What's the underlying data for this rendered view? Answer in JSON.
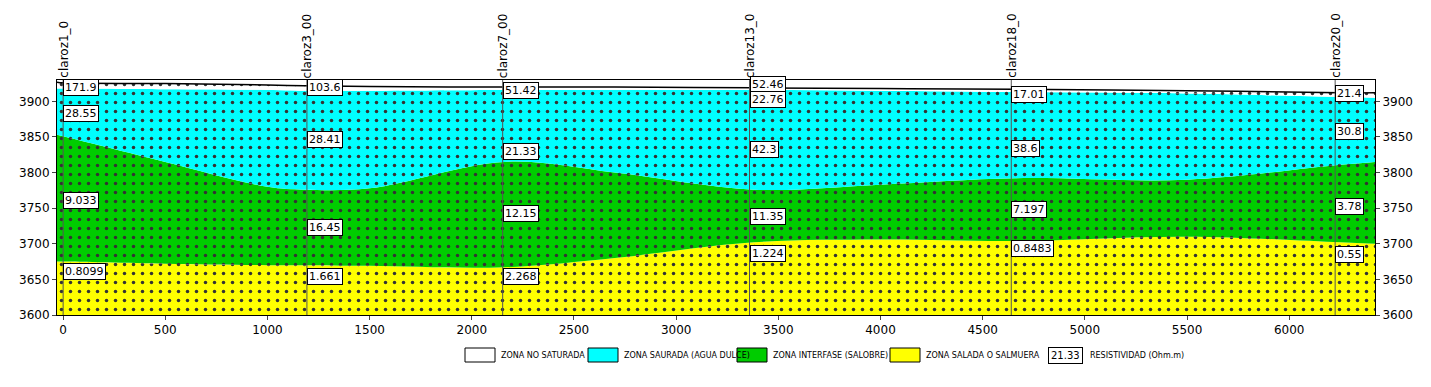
{
  "chart_data": {
    "type": "area",
    "x": [
      -30,
      0,
      500,
      1000,
      1180,
      1500,
      2160,
      2700,
      3380,
      4000,
      4660,
      5500,
      6250,
      6420
    ],
    "series": [
      {
        "name": "ZONA NO SATURADA",
        "color": "#ffffff",
        "values": [
          3927,
          3926,
          3925,
          3923,
          3922,
          3921,
          3920,
          3920,
          3919,
          3918,
          3917,
          3915,
          3912,
          3912
        ]
      },
      {
        "name": "ZONA SAURADA (AGUA DULCE)",
        "color": "#00ffff",
        "values": [
          3918,
          3918,
          3917,
          3916,
          3915,
          3915,
          3916,
          3916,
          3916,
          3915,
          3913,
          3911,
          3906,
          3905
        ]
      },
      {
        "name": "ZONA INTERFASE (SALOBRE)",
        "color": "#00cc00",
        "values": [
          3853,
          3851,
          3815,
          3780,
          3776,
          3778,
          3815,
          3800,
          3776,
          3783,
          3792,
          3790,
          3811,
          3815
        ]
      },
      {
        "name": "ZONA SALADA O SALMUERA",
        "color": "#ffff00",
        "values": [
          3675,
          3675,
          3672,
          3670,
          3670,
          3669,
          3667,
          3680,
          3702,
          3706,
          3704,
          3710,
          3702,
          3700
        ]
      }
    ],
    "stations": [
      {
        "name": "claroz1_0",
        "x": 0,
        "resistivity": [
          {
            "value": 171.9,
            "elevation": 3920
          },
          {
            "value": 28.55,
            "elevation": 3883
          },
          {
            "value": 9.033,
            "elevation": 3761
          },
          {
            "value": 0.8099,
            "elevation": 3661
          }
        ]
      },
      {
        "name": "claroz3_00",
        "x": 1193,
        "resistivity": [
          {
            "value": 103.6,
            "elevation": 3920
          },
          {
            "value": 28.41,
            "elevation": 3846
          },
          {
            "value": 16.45,
            "elevation": 3723
          },
          {
            "value": 1.661,
            "elevation": 3654
          }
        ]
      },
      {
        "name": "claroz7_00",
        "x": 2151,
        "resistivity": [
          {
            "value": 51.42,
            "elevation": 3915
          },
          {
            "value": 21.33,
            "elevation": 3830
          },
          {
            "value": 12.15,
            "elevation": 3742
          },
          {
            "value": 2.268,
            "elevation": 3654
          }
        ]
      },
      {
        "name": "claroz13_0",
        "x": 3359,
        "resistivity": [
          {
            "value": 52.46,
            "elevation": 3924
          },
          {
            "value": 22.76,
            "elevation": 3903
          },
          {
            "value": 42.3,
            "elevation": 3832
          },
          {
            "value": 11.35,
            "elevation": 3739
          },
          {
            "value": 1.224,
            "elevation": 3686
          }
        ]
      },
      {
        "name": "claroz18_0",
        "x": 4640,
        "resistivity": [
          {
            "value": 17.01,
            "elevation": 3910
          },
          {
            "value": 38.6,
            "elevation": 3834
          },
          {
            "value": 7.197,
            "elevation": 3748
          },
          {
            "value": 0.8483,
            "elevation": 3693
          }
        ]
      },
      {
        "name": "claroz20_0",
        "x": 6225,
        "resistivity": [
          {
            "value": 21.4,
            "elevation": 3911
          },
          {
            "value": 30.8,
            "elevation": 3858
          },
          {
            "value": 3.78,
            "elevation": 3753
          },
          {
            "value": 0.55,
            "elevation": 3685
          }
        ]
      }
    ],
    "resistivity_legend": {
      "sample": 21.33,
      "label": "RESISTIVIDAD (Ohm.m)"
    },
    "xlim": [
      -30,
      6420
    ],
    "xticks": [
      0,
      500,
      1000,
      1500,
      2000,
      2500,
      3000,
      3500,
      4000,
      4500,
      5000,
      5500,
      6000
    ],
    "ylim": [
      3600,
      3930
    ],
    "yticks": [
      3600,
      3650,
      3700,
      3750,
      3800,
      3850,
      3900
    ],
    "y2lim": [
      3600,
      3930
    ],
    "y2ticks": [
      3600,
      3650,
      3700,
      3750,
      3800,
      3850,
      3900
    ],
    "grid": false,
    "data_labels": true
  }
}
